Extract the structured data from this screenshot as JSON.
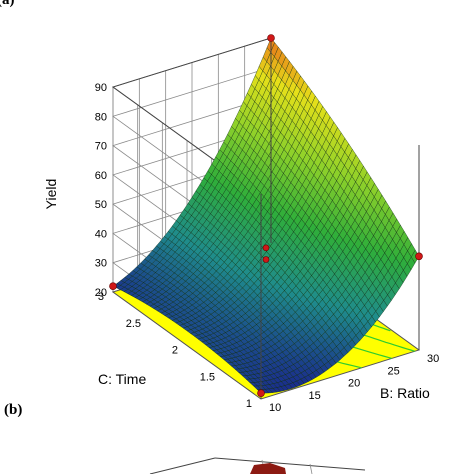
{
  "panels": {
    "top": "(a)",
    "bottom": "(b)"
  },
  "chart_data": {
    "type": "surface",
    "zlabel": "Yield",
    "xlabel": "B: Ratio",
    "ylabel": "C: Time",
    "x_ticks": [
      "10",
      "15",
      "20",
      "25",
      "30"
    ],
    "y_ticks": [
      "1",
      "1.5",
      "2",
      "2.5",
      "3"
    ],
    "z_ticks": [
      "20",
      "30",
      "40",
      "50",
      "60",
      "70",
      "80",
      "90"
    ],
    "xlim": [
      10,
      30
    ],
    "ylim": [
      1,
      3
    ],
    "zlim": [
      20,
      90
    ],
    "corner_points": [
      {
        "ratio": 10,
        "time": 1,
        "yield": 22
      },
      {
        "ratio": 30,
        "time": 1,
        "yield": 52
      },
      {
        "ratio": 10,
        "time": 3,
        "yield": 22
      },
      {
        "ratio": 30,
        "time": 3,
        "yield": 90
      }
    ],
    "center_point": {
      "ratio": 20,
      "time": 2,
      "yield": 43
    },
    "colormap": [
      "#1a2a8c",
      "#1f8c8c",
      "#2fae3a",
      "#8fd12a",
      "#e6e01a",
      "#e83a1a"
    ],
    "floor_color": "#ffff00",
    "contour_color": "#2ecc2e",
    "point_color": "#d01818",
    "grid": true
  }
}
